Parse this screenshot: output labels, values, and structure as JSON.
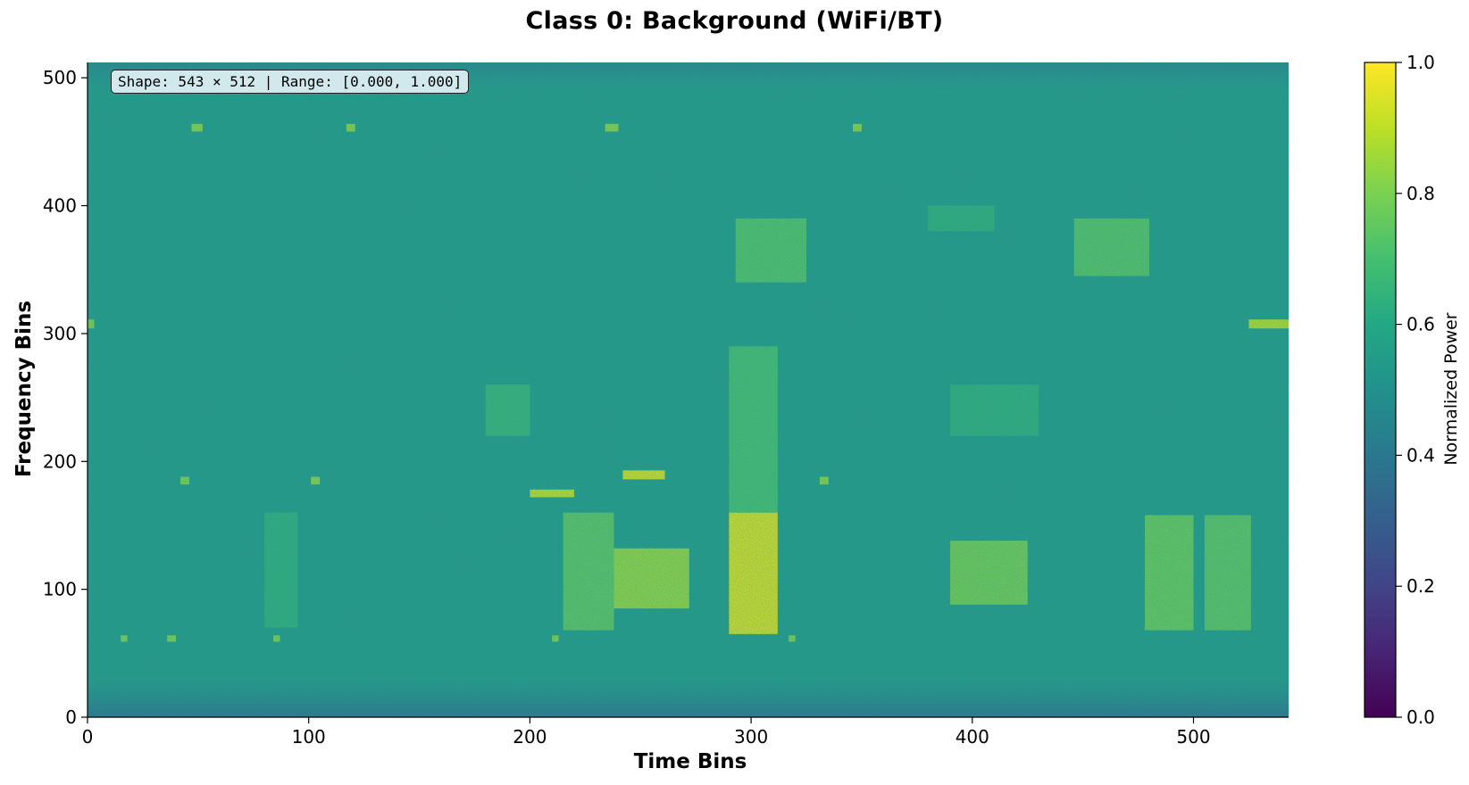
{
  "chart_data": {
    "type": "heatmap",
    "title": "Class 0: Background (WiFi/BT)",
    "xlabel": "Time Bins",
    "ylabel": "Frequency Bins",
    "xlim": [
      0,
      543
    ],
    "ylim": [
      0,
      512
    ],
    "xticks": [
      0,
      100,
      200,
      300,
      400,
      500
    ],
    "yticks": [
      0,
      100,
      200,
      300,
      400,
      500
    ],
    "colormap": "viridis",
    "colorbar": {
      "label": "Normalized Power",
      "range": [
        0.0,
        1.0
      ],
      "ticks": [
        "0.0",
        "0.2",
        "0.4",
        "0.6",
        "0.8",
        "1.0"
      ]
    },
    "annotation": "Shape: 543 × 512 | Range: [0.000, 1.000]",
    "background_level": 0.55,
    "regions": [
      {
        "t": [
          290,
          312
        ],
        "f": [
          65,
          160
        ],
        "v": 0.93
      },
      {
        "t": [
          290,
          312
        ],
        "f": [
          160,
          290
        ],
        "v": 0.7
      },
      {
        "t": [
          293,
          325
        ],
        "f": [
          340,
          390
        ],
        "v": 0.72
      },
      {
        "t": [
          215,
          238
        ],
        "f": [
          68,
          160
        ],
        "v": 0.74
      },
      {
        "t": [
          238,
          272
        ],
        "f": [
          85,
          132
        ],
        "v": 0.83
      },
      {
        "t": [
          478,
          500
        ],
        "f": [
          68,
          158
        ],
        "v": 0.76
      },
      {
        "t": [
          505,
          526
        ],
        "f": [
          68,
          158
        ],
        "v": 0.74
      },
      {
        "t": [
          390,
          425
        ],
        "f": [
          88,
          138
        ],
        "v": 0.78
      },
      {
        "t": [
          446,
          480
        ],
        "f": [
          345,
          390
        ],
        "v": 0.73
      },
      {
        "t": [
          180,
          200
        ],
        "f": [
          220,
          260
        ],
        "v": 0.66
      },
      {
        "t": [
          380,
          410
        ],
        "f": [
          380,
          400
        ],
        "v": 0.64
      },
      {
        "t": [
          390,
          430
        ],
        "f": [
          220,
          260
        ],
        "v": 0.64
      },
      {
        "t": [
          80,
          95
        ],
        "f": [
          70,
          160
        ],
        "v": 0.64
      },
      {
        "t": [
          200,
          220
        ],
        "f": [
          172,
          178
        ],
        "v": 0.9
      },
      {
        "t": [
          242,
          261
        ],
        "f": [
          186,
          193
        ],
        "v": 0.93
      },
      {
        "t": [
          525,
          543
        ],
        "f": [
          304,
          311
        ],
        "v": 0.88
      },
      {
        "t": [
          0,
          3
        ],
        "f": [
          304,
          311
        ],
        "v": 0.8
      },
      {
        "t": [
          47,
          52
        ],
        "f": [
          458,
          464
        ],
        "v": 0.82
      },
      {
        "t": [
          117,
          121
        ],
        "f": [
          458,
          464
        ],
        "v": 0.82
      },
      {
        "t": [
          234,
          240
        ],
        "f": [
          458,
          464
        ],
        "v": 0.82
      },
      {
        "t": [
          346,
          350
        ],
        "f": [
          458,
          464
        ],
        "v": 0.82
      },
      {
        "t": [
          15,
          18
        ],
        "f": [
          59,
          64
        ],
        "v": 0.8
      },
      {
        "t": [
          36,
          40
        ],
        "f": [
          59,
          64
        ],
        "v": 0.8
      },
      {
        "t": [
          84,
          87
        ],
        "f": [
          59,
          64
        ],
        "v": 0.8
      },
      {
        "t": [
          42,
          46
        ],
        "f": [
          182,
          188
        ],
        "v": 0.8
      },
      {
        "t": [
          101,
          105
        ],
        "f": [
          182,
          188
        ],
        "v": 0.82
      },
      {
        "t": [
          331,
          335
        ],
        "f": [
          182,
          188
        ],
        "v": 0.82
      },
      {
        "t": [
          210,
          213
        ],
        "f": [
          59,
          64
        ],
        "v": 0.8
      },
      {
        "t": [
          317,
          320
        ],
        "f": [
          59,
          64
        ],
        "v": 0.8
      }
    ]
  }
}
